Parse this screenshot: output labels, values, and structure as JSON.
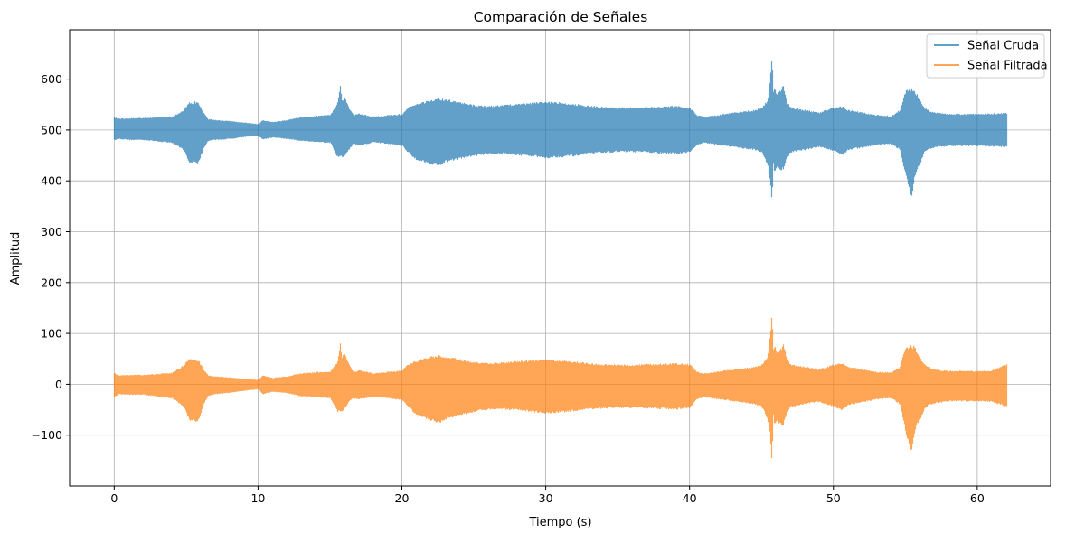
{
  "chart_data": {
    "type": "line",
    "title": "Comparación de Señales",
    "xlabel": "Tiempo (s)",
    "ylabel": "Amplitud",
    "xlim": [
      -3.1,
      65.1
    ],
    "ylim": [
      -200,
      697
    ],
    "xticks": [
      0,
      10,
      20,
      30,
      40,
      50,
      60
    ],
    "xtick_labels": [
      "0",
      "10",
      "20",
      "30",
      "40",
      "50",
      "60"
    ],
    "yticks": [
      -100,
      0,
      100,
      200,
      300,
      400,
      500,
      600
    ],
    "ytick_labels": [
      "−100",
      "0",
      "100",
      "200",
      "300",
      "400",
      "500",
      "600"
    ],
    "grid": true,
    "legend_position": "top-right",
    "series": [
      {
        "name": "Señal Cruda",
        "color": "#1f77b4",
        "alpha": 0.7,
        "envelope_t": [
          0,
          0.3,
          1,
          2,
          3,
          4,
          4.8,
          5.2,
          5.8,
          6.2,
          6.5,
          7,
          8,
          9,
          10,
          10.3,
          11,
          12,
          13,
          14,
          15,
          15.5,
          15.7,
          15.8,
          16,
          16.3,
          16.6,
          17,
          18,
          19,
          20,
          20.4,
          21,
          22,
          22.6,
          23,
          24,
          25,
          26,
          27,
          28,
          29,
          30,
          31,
          32,
          33,
          34,
          35,
          36,
          37,
          38,
          39,
          40,
          40.5,
          41,
          42,
          43,
          44,
          44.5,
          45,
          45.4,
          45.6,
          45.7,
          45.8,
          45.9,
          46,
          46.3,
          46.5,
          46.7,
          47,
          48,
          49,
          50,
          50.6,
          51,
          52,
          53,
          54,
          54.6,
          55,
          55.4,
          55.6,
          55.8,
          56,
          56.3,
          56.6,
          57,
          58,
          59,
          60,
          61,
          62
        ],
        "envelope_max": [
          525,
          523,
          524,
          524,
          526,
          527,
          540,
          555,
          557,
          535,
          522,
          520,
          518,
          515,
          512,
          520,
          516,
          520,
          526,
          528,
          530,
          555,
          588,
          560,
          565,
          545,
          530,
          533,
          527,
          530,
          532,
          545,
          552,
          560,
          563,
          561,
          556,
          550,
          548,
          550,
          552,
          554,
          557,
          555,
          552,
          548,
          546,
          545,
          545,
          546,
          547,
          548,
          545,
          530,
          526,
          530,
          535,
          538,
          540,
          545,
          560,
          610,
          658,
          580,
          585,
          575,
          578,
          590,
          560,
          545,
          540,
          535,
          545,
          548,
          540,
          535,
          530,
          528,
          540,
          580,
          583,
          580,
          570,
          560,
          545,
          540,
          535,
          532,
          532,
          532,
          533,
          534
        ],
        "envelope_min": [
          480,
          482,
          480,
          480,
          477,
          474,
          460,
          435,
          433,
          462,
          478,
          480,
          482,
          486,
          488,
          481,
          485,
          482,
          478,
          476,
          474,
          445,
          445,
          445,
          448,
          460,
          472,
          468,
          475,
          472,
          468,
          455,
          440,
          432,
          430,
          436,
          442,
          448,
          452,
          452,
          450,
          447,
          444,
          446,
          448,
          452,
          455,
          456,
          456,
          455,
          453,
          452,
          456,
          470,
          474,
          470,
          466,
          462,
          460,
          456,
          430,
          390,
          355,
          430,
          415,
          425,
          420,
          420,
          440,
          455,
          460,
          466,
          458,
          450,
          460,
          465,
          470,
          472,
          460,
          410,
          365,
          400,
          420,
          430,
          455,
          460,
          465,
          468,
          468,
          468,
          467,
          466
        ]
      },
      {
        "name": "Señal Filtrada",
        "color": "#ff7f0e",
        "alpha": 0.7,
        "envelope_t": [
          0,
          0.3,
          1,
          2,
          3,
          4,
          4.8,
          5.2,
          5.8,
          6.2,
          6.5,
          7,
          8,
          9,
          10,
          10.3,
          11,
          12,
          13,
          14,
          15,
          15.5,
          15.7,
          15.8,
          16,
          16.3,
          16.6,
          17,
          18,
          19,
          20,
          20.4,
          21,
          22,
          22.6,
          23,
          24,
          25,
          26,
          27,
          28,
          29,
          30,
          31,
          32,
          33,
          34,
          35,
          36,
          37,
          38,
          39,
          40,
          40.5,
          41,
          42,
          43,
          44,
          44.5,
          45,
          45.4,
          45.6,
          45.7,
          45.8,
          45.9,
          46,
          46.3,
          46.5,
          46.7,
          47,
          48,
          49,
          50,
          50.6,
          51,
          52,
          53,
          54,
          54.6,
          55,
          55.4,
          55.6,
          55.8,
          56,
          56.3,
          56.6,
          57,
          58,
          59,
          60,
          61,
          62
        ],
        "envelope_max": [
          22,
          18,
          19,
          19,
          21,
          23,
          38,
          52,
          50,
          30,
          18,
          16,
          14,
          11,
          9,
          18,
          13,
          16,
          22,
          24,
          26,
          45,
          82,
          55,
          62,
          40,
          25,
          28,
          22,
          25,
          28,
          40,
          48,
          55,
          58,
          56,
          50,
          45,
          42,
          44,
          46,
          48,
          50,
          48,
          46,
          42,
          40,
          39,
          39,
          40,
          41,
          42,
          40,
          25,
          22,
          26,
          30,
          33,
          35,
          40,
          55,
          105,
          150,
          70,
          78,
          65,
          70,
          80,
          55,
          40,
          35,
          30,
          40,
          42,
          35,
          30,
          25,
          24,
          35,
          75,
          78,
          75,
          65,
          55,
          40,
          35,
          30,
          27,
          27,
          27,
          28,
          40
        ],
        "envelope_min": [
          -25,
          -20,
          -21,
          -21,
          -25,
          -28,
          -45,
          -72,
          -75,
          -40,
          -24,
          -20,
          -17,
          -13,
          -10,
          -20,
          -15,
          -18,
          -24,
          -26,
          -28,
          -55,
          -55,
          -55,
          -50,
          -35,
          -28,
          -30,
          -25,
          -28,
          -32,
          -45,
          -62,
          -72,
          -78,
          -70,
          -62,
          -55,
          -50,
          -50,
          -52,
          -55,
          -58,
          -56,
          -54,
          -50,
          -48,
          -47,
          -47,
          -48,
          -49,
          -50,
          -48,
          -30,
          -26,
          -30,
          -34,
          -38,
          -40,
          -45,
          -70,
          -110,
          -158,
          -60,
          -85,
          -75,
          -80,
          -80,
          -60,
          -45,
          -40,
          -35,
          -45,
          -52,
          -42,
          -36,
          -30,
          -28,
          -40,
          -95,
          -140,
          -100,
          -80,
          -70,
          -50,
          -42,
          -38,
          -34,
          -34,
          -34,
          -35,
          -45
        ]
      }
    ]
  }
}
